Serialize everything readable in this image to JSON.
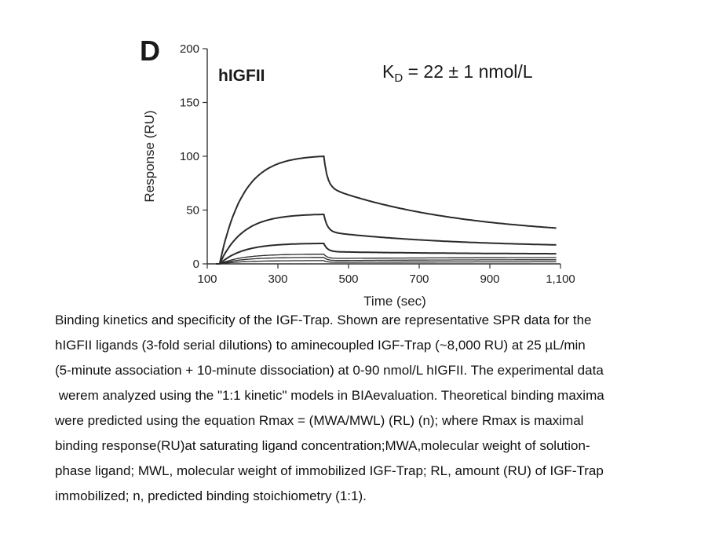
{
  "chart_data": {
    "type": "line",
    "panel_label": "D",
    "title": "hIGFII",
    "annotation": {
      "text": "K",
      "sub": "D",
      "rest": " = 22 ± 1 nmol/L"
    },
    "xlabel": "Time (sec)",
    "ylabel": "Response (RU)",
    "xlim": [
      100,
      1100
    ],
    "ylim": [
      0,
      200
    ],
    "xticks": [
      100,
      300,
      500,
      700,
      900,
      1100
    ],
    "xtick_labels": [
      "100",
      "300",
      "500",
      "700",
      "900",
      "1,100"
    ],
    "yticks": [
      0,
      50,
      100,
      150,
      200
    ],
    "ytick_labels": [
      "0",
      "50",
      "100",
      "150",
      "200"
    ],
    "injection_start": 135,
    "injection_end": 430,
    "series": [
      {
        "association_end": 100,
        "asymptote_fraction": 0.72,
        "dissociation_end": 25
      },
      {
        "association_end": 46,
        "asymptote_fraction": 0.65,
        "dissociation_end": 15
      },
      {
        "association_end": 19,
        "asymptote_fraction": 0.6,
        "dissociation_end": 9
      },
      {
        "association_end": 9,
        "asymptote_fraction": 0.55,
        "dissociation_end": 6
      },
      {
        "association_end": 6,
        "asymptote_fraction": 0.5,
        "dissociation_end": 4
      },
      {
        "association_end": 3,
        "asymptote_fraction": 0.45,
        "dissociation_end": 2
      }
    ],
    "grid": false
  },
  "caption": [
    "Binding kinetics and specificity of the IGF-Trap. Shown are representative SPR data for the",
    "hIGFII ligands (3-fold serial dilutions) to aminecoupled IGF-Trap (~8,000 RU) at 25 µL/min",
    "(5-minute association + 10-minute dissociation) at 0-90 nmol/L hIGFII. The experimental data",
    " werem analyzed using the \"1:1 kinetic\" models in BIAevaluation. Theoretical binding maxima",
    "were predicted using the equation Rmax = (MWA/MWL) (RL) (n); where Rmax is maximal",
    "binding response(RU)at saturating ligand concentration;MWA,molecular weight of solution-",
    "phase ligand; MWL, molecular weight of immobilized IGF-Trap; RL, amount (RU) of IGF-Trap",
    "immobilized; n, predicted binding stoichiometry (1:1)."
  ]
}
